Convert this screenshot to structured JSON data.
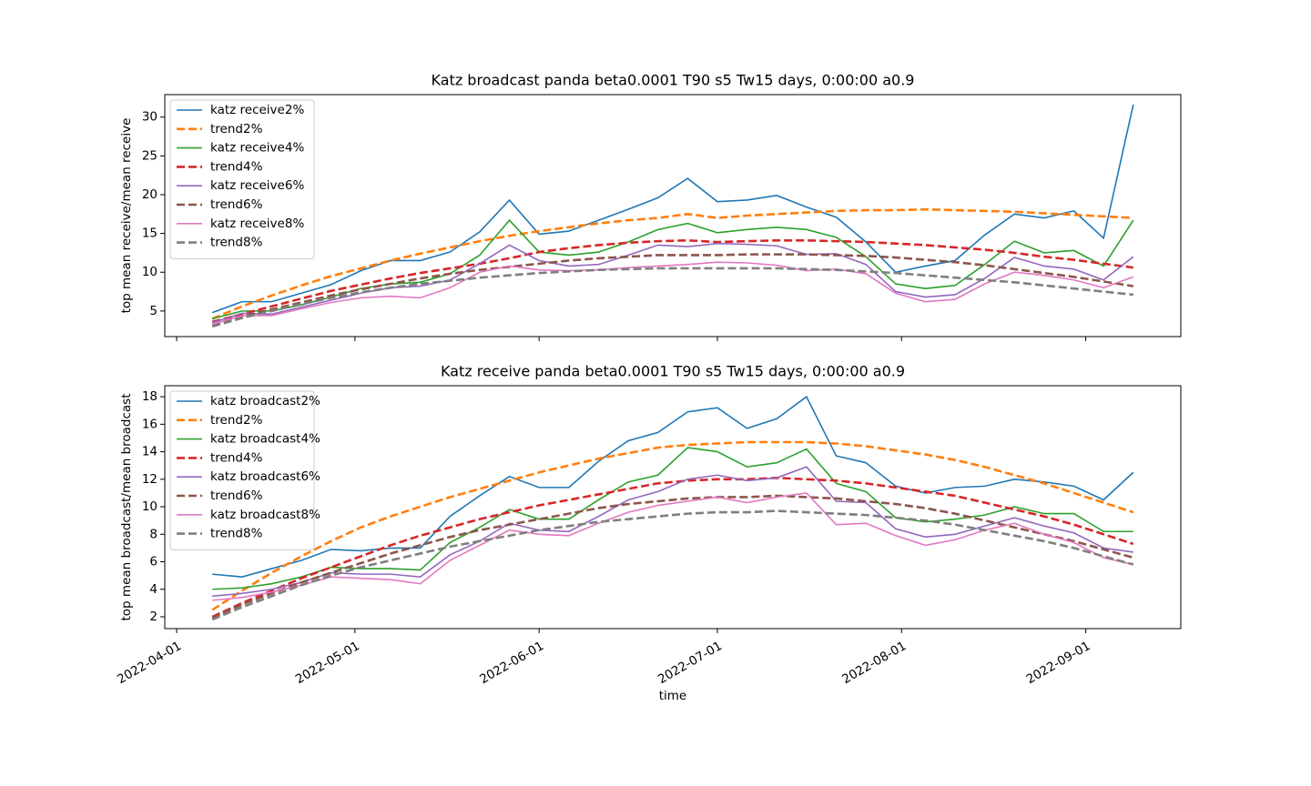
{
  "chart_data": [
    {
      "type": "line",
      "title": "Katz broadcast panda beta0.0001 T90 s5 Tw15 days, 0:00:00 a0.9",
      "ylabel": "top mean receive/mean receive",
      "legend": "upper left",
      "x": [
        "2022-04-07",
        "2022-04-12",
        "2022-04-17",
        "2022-04-22",
        "2022-04-27",
        "2022-05-02",
        "2022-05-07",
        "2022-05-12",
        "2022-05-17",
        "2022-05-22",
        "2022-05-27",
        "2022-06-01",
        "2022-06-06",
        "2022-06-11",
        "2022-06-16",
        "2022-06-21",
        "2022-06-26",
        "2022-07-01",
        "2022-07-06",
        "2022-07-11",
        "2022-07-16",
        "2022-07-21",
        "2022-07-26",
        "2022-07-31",
        "2022-08-05",
        "2022-08-10",
        "2022-08-15",
        "2022-08-20",
        "2022-08-25",
        "2022-08-30",
        "2022-09-04",
        "2022-09-09"
      ],
      "xlim": [
        "2022-03-30",
        "2022-09-17"
      ],
      "ylim": [
        1.7,
        32.9
      ],
      "yticks": [
        5,
        10,
        15,
        20,
        25,
        30
      ],
      "series": [
        {
          "name": "katz receive2%",
          "color": "#1f77b4",
          "linestyle": "solid",
          "values": [
            4.8,
            6.2,
            6.2,
            7.3,
            8.4,
            10.2,
            11.5,
            11.5,
            12.6,
            15.2,
            19.3,
            14.9,
            15.3,
            16.7,
            18.1,
            19.6,
            22.1,
            19.1,
            19.3,
            19.9,
            18.4,
            17.1,
            13.9,
            10.0,
            10.8,
            11.5,
            14.8,
            17.5,
            17.0,
            17.9,
            14.4,
            31.6
          ]
        },
        {
          "name": "trend2%",
          "color": "#ff7f0e",
          "linestyle": "dashed",
          "values": [
            4.0,
            5.6,
            7.0,
            8.3,
            9.5,
            10.5,
            11.5,
            12.4,
            13.2,
            14.0,
            14.7,
            15.3,
            15.8,
            16.3,
            16.7,
            17.0,
            17.5,
            17.0,
            17.3,
            17.5,
            17.7,
            17.9,
            18.0,
            18.0,
            18.1,
            18.0,
            17.9,
            17.8,
            17.6,
            17.4,
            17.2,
            17.0
          ]
        },
        {
          "name": "katz receive4%",
          "color": "#2ca02c",
          "linestyle": "solid",
          "values": [
            4.0,
            5.0,
            5.0,
            5.8,
            6.8,
            7.9,
            8.5,
            8.7,
            9.8,
            12.2,
            16.7,
            12.6,
            12.2,
            12.6,
            13.9,
            15.5,
            16.3,
            15.1,
            15.5,
            15.8,
            15.5,
            14.5,
            12.0,
            8.5,
            7.9,
            8.3,
            11.0,
            14.0,
            12.5,
            12.8,
            10.8,
            16.7
          ]
        },
        {
          "name": "trend4%",
          "color": "#d62728",
          "linestyle": "dashed",
          "values": [
            3.6,
            4.6,
            5.6,
            6.6,
            7.6,
            8.4,
            9.2,
            9.9,
            10.5,
            11.1,
            11.8,
            12.6,
            13.1,
            13.5,
            13.8,
            14.0,
            14.1,
            13.9,
            14.0,
            14.1,
            14.1,
            14.0,
            13.9,
            13.7,
            13.5,
            13.2,
            12.9,
            12.5,
            12.0,
            11.6,
            11.1,
            10.6
          ]
        },
        {
          "name": "katz receive6%",
          "color": "#9467bd",
          "linestyle": "solid",
          "values": [
            3.5,
            4.7,
            4.6,
            5.5,
            6.4,
            7.3,
            8.0,
            8.2,
            9.0,
            11.1,
            13.5,
            11.5,
            10.8,
            11.0,
            12.2,
            13.5,
            13.3,
            13.7,
            13.6,
            13.4,
            12.3,
            12.4,
            11.0,
            7.5,
            6.8,
            7.1,
            9.2,
            11.9,
            10.8,
            10.4,
            9.0,
            12.0
          ]
        },
        {
          "name": "trend6%",
          "color": "#8c564b",
          "linestyle": "dashed",
          "values": [
            3.2,
            4.3,
            5.2,
            6.1,
            7.0,
            7.8,
            8.5,
            9.2,
            9.8,
            10.3,
            10.7,
            11.1,
            11.5,
            11.8,
            12.0,
            12.2,
            12.2,
            12.2,
            12.3,
            12.3,
            12.3,
            12.2,
            12.1,
            11.9,
            11.6,
            11.3,
            10.9,
            10.4,
            9.9,
            9.4,
            8.8,
            8.2
          ]
        },
        {
          "name": "katz receive8%",
          "color": "#e377c2",
          "linestyle": "solid",
          "values": [
            3.3,
            4.4,
            4.4,
            5.3,
            6.1,
            6.7,
            6.9,
            6.7,
            8.0,
            10.0,
            10.8,
            10.3,
            10.2,
            10.3,
            10.6,
            10.8,
            11.0,
            11.3,
            11.2,
            10.9,
            10.2,
            10.4,
            9.8,
            7.3,
            6.2,
            6.5,
            8.5,
            10.0,
            9.6,
            9.0,
            8.0,
            9.4
          ]
        },
        {
          "name": "trend8%",
          "color": "#7f7f7f",
          "linestyle": "dashed",
          "values": [
            3.0,
            4.1,
            5.0,
            5.9,
            6.7,
            7.4,
            8.0,
            8.5,
            8.9,
            9.3,
            9.6,
            9.9,
            10.1,
            10.3,
            10.4,
            10.5,
            10.5,
            10.5,
            10.5,
            10.5,
            10.4,
            10.3,
            10.1,
            9.9,
            9.6,
            9.3,
            9.0,
            8.7,
            8.3,
            7.9,
            7.5,
            7.1
          ]
        }
      ]
    },
    {
      "type": "line",
      "title": "Katz receive panda beta0.0001 T90 s5 Tw15 days, 0:00:00 a0.9",
      "xlabel": "time",
      "ylabel": "top mean broadcast/mean broadcast",
      "legend": "upper left",
      "x": [
        "2022-04-07",
        "2022-04-12",
        "2022-04-17",
        "2022-04-22",
        "2022-04-27",
        "2022-05-02",
        "2022-05-07",
        "2022-05-12",
        "2022-05-17",
        "2022-05-22",
        "2022-05-27",
        "2022-06-01",
        "2022-06-06",
        "2022-06-11",
        "2022-06-16",
        "2022-06-21",
        "2022-06-26",
        "2022-07-01",
        "2022-07-06",
        "2022-07-11",
        "2022-07-16",
        "2022-07-21",
        "2022-07-26",
        "2022-07-31",
        "2022-08-05",
        "2022-08-10",
        "2022-08-15",
        "2022-08-20",
        "2022-08-25",
        "2022-08-30",
        "2022-09-04",
        "2022-09-09"
      ],
      "xlim": [
        "2022-03-30",
        "2022-09-17"
      ],
      "xticks": [
        "2022-04-01",
        "2022-05-01",
        "2022-06-01",
        "2022-07-01",
        "2022-08-01",
        "2022-09-01"
      ],
      "ylim": [
        1.14,
        18.8
      ],
      "yticks": [
        2,
        4,
        6,
        8,
        10,
        12,
        14,
        16,
        18
      ],
      "series": [
        {
          "name": "katz broadcast2%",
          "color": "#1f77b4",
          "linestyle": "solid",
          "values": [
            5.1,
            4.9,
            5.5,
            6.1,
            6.9,
            6.8,
            7.0,
            7.0,
            9.3,
            10.8,
            12.2,
            11.4,
            11.4,
            13.3,
            14.8,
            15.4,
            16.9,
            17.2,
            15.7,
            16.4,
            18.0,
            13.7,
            13.2,
            11.5,
            11.0,
            11.4,
            11.5,
            12.0,
            11.8,
            11.5,
            10.5,
            12.5
          ]
        },
        {
          "name": "trend2%",
          "color": "#ff7f0e",
          "linestyle": "dashed",
          "values": [
            2.5,
            3.9,
            5.2,
            6.4,
            7.5,
            8.5,
            9.3,
            10.0,
            10.7,
            11.3,
            11.9,
            12.5,
            13.0,
            13.5,
            13.9,
            14.3,
            14.5,
            14.6,
            14.7,
            14.7,
            14.7,
            14.6,
            14.4,
            14.1,
            13.8,
            13.4,
            12.9,
            12.3,
            11.7,
            11.0,
            10.3,
            9.6
          ]
        },
        {
          "name": "katz broadcast4%",
          "color": "#2ca02c",
          "linestyle": "solid",
          "values": [
            4.0,
            4.1,
            4.4,
            4.9,
            5.6,
            5.5,
            5.5,
            5.4,
            7.4,
            8.5,
            9.8,
            9.1,
            9.1,
            10.5,
            11.8,
            12.3,
            14.3,
            14.0,
            12.9,
            13.2,
            14.2,
            11.7,
            11.1,
            9.2,
            8.9,
            9.1,
            9.4,
            10.0,
            9.5,
            9.5,
            8.2,
            8.2
          ]
        },
        {
          "name": "trend4%",
          "color": "#d62728",
          "linestyle": "dashed",
          "values": [
            2.0,
            3.0,
            3.9,
            4.8,
            5.6,
            6.4,
            7.2,
            7.9,
            8.5,
            9.1,
            9.6,
            10.1,
            10.5,
            10.9,
            11.3,
            11.7,
            11.9,
            12.0,
            12.0,
            12.1,
            12.0,
            11.9,
            11.7,
            11.4,
            11.1,
            10.8,
            10.3,
            9.8,
            9.3,
            8.7,
            8.0,
            7.3
          ]
        },
        {
          "name": "katz broadcast6%",
          "color": "#9467bd",
          "linestyle": "solid",
          "values": [
            3.5,
            3.7,
            4.0,
            4.5,
            5.2,
            5.1,
            5.1,
            4.9,
            6.5,
            7.5,
            8.8,
            8.3,
            8.2,
            9.3,
            10.5,
            11.1,
            12.0,
            12.3,
            11.9,
            12.1,
            12.9,
            10.4,
            10.3,
            8.4,
            7.8,
            8.0,
            8.6,
            9.2,
            8.6,
            8.1,
            7.0,
            6.7
          ]
        },
        {
          "name": "trend6%",
          "color": "#8c564b",
          "linestyle": "dashed",
          "values": [
            1.9,
            2.9,
            3.7,
            4.5,
            5.2,
            5.9,
            6.6,
            7.2,
            7.8,
            8.3,
            8.7,
            9.1,
            9.5,
            9.9,
            10.2,
            10.4,
            10.6,
            10.7,
            10.7,
            10.8,
            10.7,
            10.6,
            10.4,
            10.2,
            9.9,
            9.5,
            9.0,
            8.5,
            8.0,
            7.5,
            6.9,
            6.3
          ]
        },
        {
          "name": "katz broadcast8%",
          "color": "#e377c2",
          "linestyle": "solid",
          "values": [
            3.2,
            3.4,
            3.8,
            4.3,
            4.9,
            4.8,
            4.7,
            4.4,
            6.1,
            7.2,
            8.3,
            8.0,
            7.9,
            8.8,
            9.6,
            10.1,
            10.4,
            10.7,
            10.3,
            10.7,
            11.0,
            8.7,
            8.8,
            7.9,
            7.2,
            7.6,
            8.3,
            8.8,
            8.0,
            7.4,
            6.3,
            5.8
          ]
        },
        {
          "name": "trend8%",
          "color": "#7f7f7f",
          "linestyle": "dashed",
          "values": [
            1.8,
            2.7,
            3.5,
            4.3,
            5.0,
            5.6,
            6.1,
            6.6,
            7.1,
            7.5,
            7.9,
            8.3,
            8.6,
            8.9,
            9.1,
            9.3,
            9.5,
            9.6,
            9.6,
            9.7,
            9.6,
            9.5,
            9.4,
            9.2,
            9.0,
            8.7,
            8.3,
            7.9,
            7.5,
            7.0,
            6.4,
            5.8
          ]
        }
      ]
    }
  ]
}
